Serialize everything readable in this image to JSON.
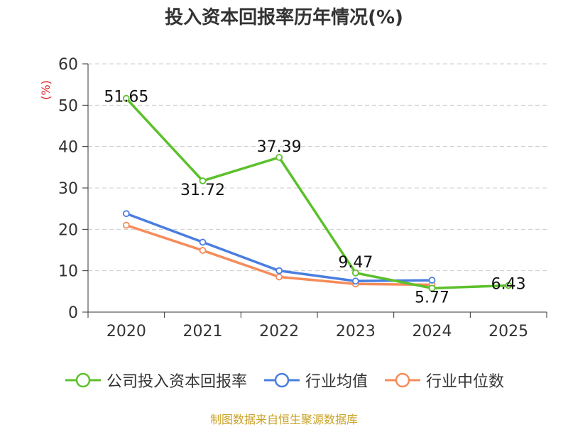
{
  "chart_data": {
    "type": "line",
    "title": "投入资本回报率历年情况(%)",
    "ylabel": "(%)",
    "xlabel": "",
    "categories": [
      "2020",
      "2021",
      "2022",
      "2023",
      "2024",
      "2025"
    ],
    "ylim": [
      0,
      60
    ],
    "yticks": [
      0,
      10,
      20,
      30,
      40,
      50,
      60
    ],
    "grid": true,
    "legend_position": "bottom",
    "series": [
      {
        "name": "公司投入资本回报率",
        "color": "#5cc02c",
        "values": [
          51.65,
          31.72,
          37.39,
          9.47,
          5.77,
          6.43
        ],
        "labels": [
          "51.65",
          "31.72",
          "37.39",
          "9.47",
          "5.77",
          "6.43"
        ]
      },
      {
        "name": "行业均值",
        "color": "#4a7ee0",
        "values": [
          23.8,
          16.9,
          10.0,
          7.5,
          7.7,
          null
        ]
      },
      {
        "name": "行业中位数",
        "color": "#f58c5a",
        "values": [
          21.0,
          14.9,
          8.5,
          6.8,
          6.6,
          null
        ]
      }
    ],
    "source": "制图数据来自恒生聚源数据库"
  }
}
